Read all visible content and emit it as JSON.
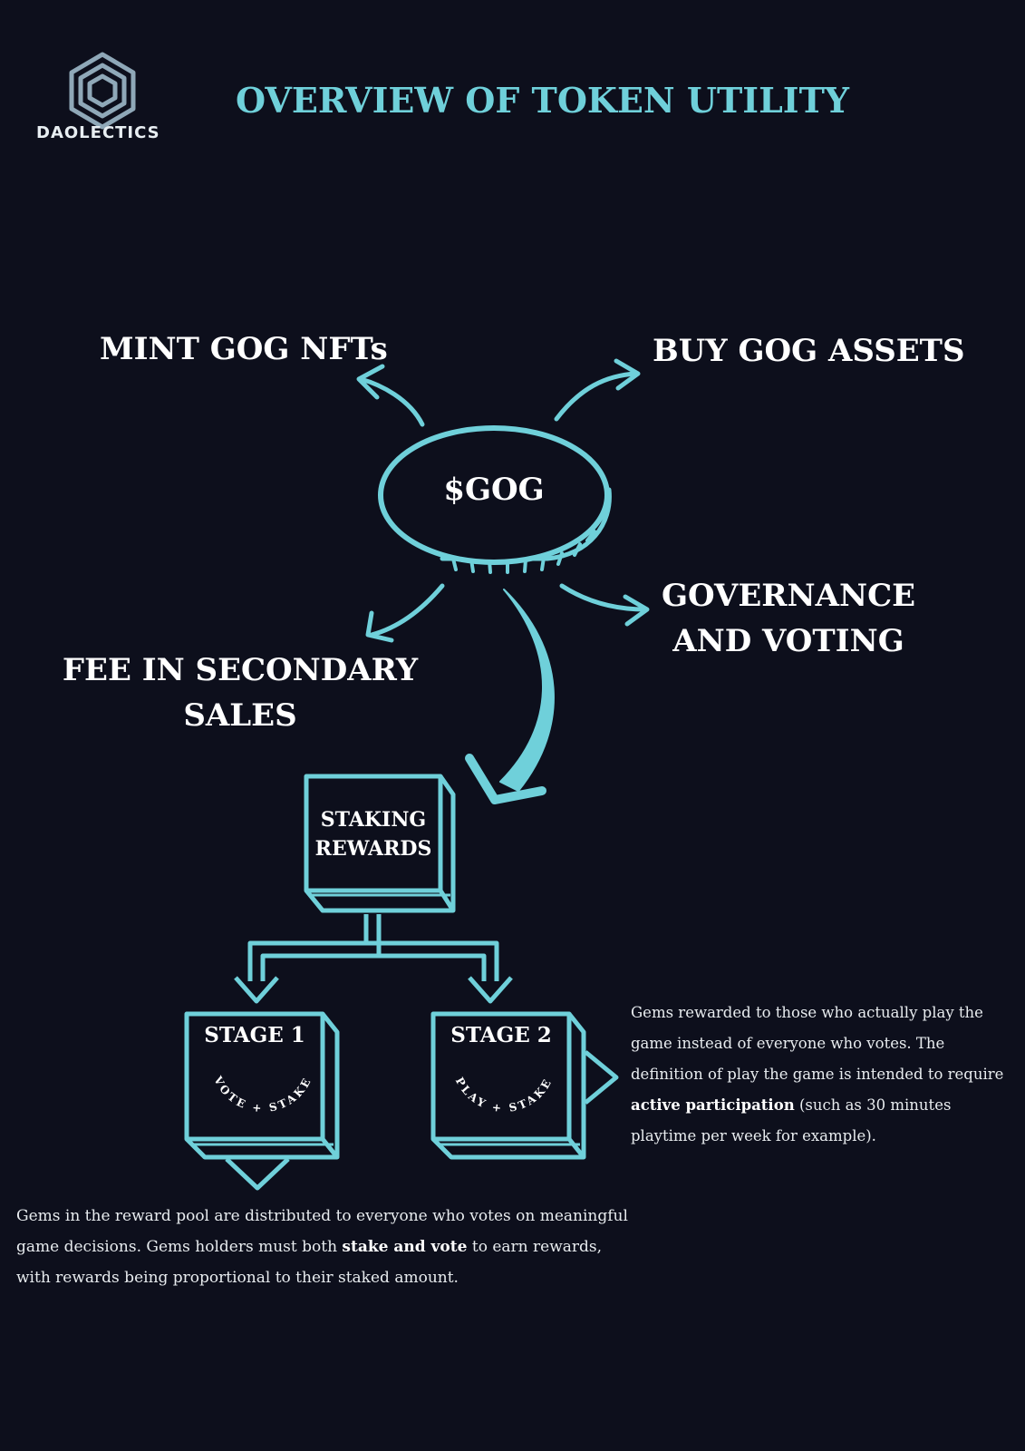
{
  "header": {
    "brand": "DAOLECTICS",
    "title": "OVERVIEW OF TOKEN UTILITY"
  },
  "token": {
    "label": "$GOG"
  },
  "utilities": {
    "mint": "MINT GOG NFTs",
    "buy": "BUY GOG ASSETS",
    "governance_line1": "GOVERNANCE",
    "governance_line2": "AND VOTING",
    "fee_line1": "FEE IN SECONDARY",
    "fee_line2": "SALES"
  },
  "staking": {
    "label_line1": "STAKING",
    "label_line2": "REWARDS"
  },
  "stages": [
    {
      "title": "STAGE 1",
      "arc_text": "VOTE + STAKE",
      "description_before": "Gems in the reward pool are distributed to everyone who votes on meaningful game decisions. Gems holders must both ",
      "description_bold": "stake and vote",
      "description_after": " to earn rewards, with rewards being proportional to their staked amount."
    },
    {
      "title": "STAGE 2",
      "arc_text": "PLAY + STAKE",
      "description_before": "Gems rewarded to those who actually play the game instead of everyone who votes. The definition of play the game is intended to require ",
      "description_bold": "active participation",
      "description_after": " (such as 30 minutes playtime per week for example)."
    }
  ],
  "colors": {
    "background": "#0d0f1c",
    "accent": "#6fd0da",
    "text": "#ffffff"
  }
}
